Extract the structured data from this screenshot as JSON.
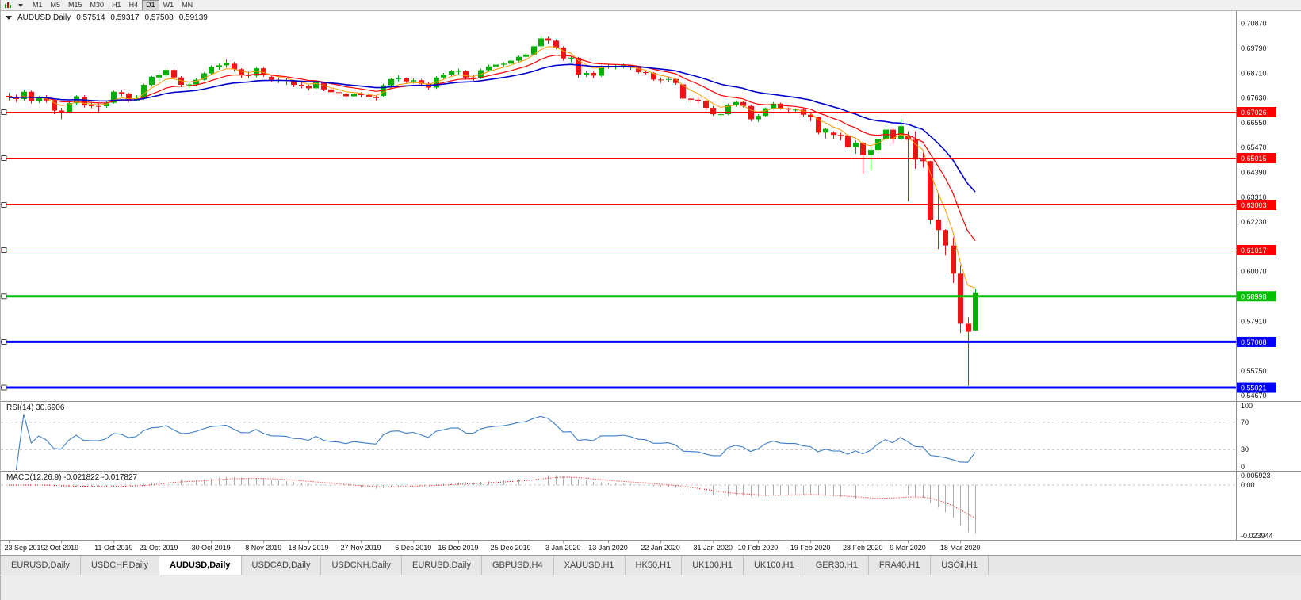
{
  "toolbar": {
    "timeframes": [
      "M1",
      "M5",
      "M15",
      "M30",
      "H1",
      "H4",
      "D1",
      "W1",
      "MN"
    ],
    "active_timeframe": "D1",
    "icons": [
      "chart-icon",
      "dropdown-icon"
    ]
  },
  "chart_data": {
    "type": "candlestick",
    "symbol": "AUDUSD",
    "timeframe": "Daily",
    "legend": {
      "symbol": "AUDUSD,Daily",
      "open": "0.57514",
      "high": "0.59317",
      "low": "0.57508",
      "close": "0.59139"
    },
    "price_axis": {
      "min": 0.5447,
      "max": 0.7141,
      "ticks": [
        [
          0.7087,
          "0.70870"
        ],
        [
          0.6979,
          "0.69790"
        ],
        [
          0.6871,
          "0.68710"
        ],
        [
          0.6763,
          "0.67630"
        ],
        [
          0.6655,
          "0.66550"
        ],
        [
          0.6547,
          "0.65470"
        ],
        [
          0.6439,
          "0.64390"
        ],
        [
          0.6331,
          "0.63310"
        ],
        [
          0.6223,
          "0.62230"
        ],
        [
          0.6007,
          "0.60070"
        ],
        [
          0.5791,
          "0.57910"
        ],
        [
          0.5575,
          "0.55750"
        ],
        [
          0.5467,
          "0.54670"
        ]
      ]
    },
    "horizontal_lines": [
      {
        "price": 0.67026,
        "label": "0.67026",
        "color": "#FF0000",
        "width": 1
      },
      {
        "price": 0.65015,
        "label": "0.65015",
        "color": "#FF0000",
        "width": 1
      },
      {
        "price": 0.63003,
        "label": "0.63003",
        "color": "#FF0000",
        "width": 1
      },
      {
        "price": 0.61017,
        "label": "0.61017",
        "color": "#FF0000",
        "width": 1
      },
      {
        "price": 0.58998,
        "label": "0.58998",
        "color": "#00C000",
        "width": 3
      },
      {
        "price": 0.57008,
        "label": "0.57008",
        "color": "#0000FF",
        "width": 3
      },
      {
        "price": 0.55021,
        "label": "0.55021",
        "color": "#0000FF",
        "width": 3
      }
    ],
    "moving_averages": [
      {
        "period": 5,
        "color": "#FF9900",
        "width": 1
      },
      {
        "period": 12,
        "color": "#FF0000",
        "width": 1.2
      },
      {
        "period": 26,
        "color": "#0000CC",
        "width": 1.6
      }
    ],
    "colors": {
      "bull": "#00B000",
      "bear": "#F01414",
      "background": "#FFFFFF",
      "axis_text": "#111111"
    },
    "candles": [
      [
        0.6772,
        0.6785,
        0.6752,
        0.6765
      ],
      [
        0.6765,
        0.6778,
        0.6745,
        0.6758
      ],
      [
        0.6758,
        0.6798,
        0.675,
        0.679
      ],
      [
        0.679,
        0.6795,
        0.6738,
        0.6748
      ],
      [
        0.6748,
        0.6772,
        0.674,
        0.6765
      ],
      [
        0.6765,
        0.6775,
        0.6742,
        0.6752
      ],
      [
        0.6752,
        0.6758,
        0.6692,
        0.6708
      ],
      [
        0.6708,
        0.672,
        0.667,
        0.6703
      ],
      [
        0.6703,
        0.6748,
        0.6698,
        0.674
      ],
      [
        0.674,
        0.6775,
        0.6732,
        0.677
      ],
      [
        0.6768,
        0.6775,
        0.6722,
        0.673
      ],
      [
        0.673,
        0.6745,
        0.6718,
        0.6728
      ],
      [
        0.6728,
        0.6738,
        0.67,
        0.6727
      ],
      [
        0.6727,
        0.6752,
        0.672,
        0.6742
      ],
      [
        0.6742,
        0.6795,
        0.6738,
        0.679
      ],
      [
        0.6788,
        0.6795,
        0.677,
        0.6782
      ],
      [
        0.6782,
        0.6785,
        0.6745,
        0.6752
      ],
      [
        0.6752,
        0.6775,
        0.6748,
        0.676
      ],
      [
        0.676,
        0.6825,
        0.6755,
        0.682
      ],
      [
        0.682,
        0.686,
        0.6812,
        0.6855
      ],
      [
        0.6852,
        0.687,
        0.6838,
        0.6862
      ],
      [
        0.6862,
        0.6892,
        0.6855,
        0.6885
      ],
      [
        0.6885,
        0.6888,
        0.6845,
        0.6852
      ],
      [
        0.6852,
        0.6858,
        0.681,
        0.682
      ],
      [
        0.682,
        0.6832,
        0.6805,
        0.6822
      ],
      [
        0.6822,
        0.6848,
        0.6815,
        0.6842
      ],
      [
        0.6842,
        0.6875,
        0.6838,
        0.687
      ],
      [
        0.687,
        0.6905,
        0.6862,
        0.6898
      ],
      [
        0.6898,
        0.6912,
        0.6885,
        0.6905
      ],
      [
        0.6905,
        0.693,
        0.6895,
        0.6915
      ],
      [
        0.6912,
        0.692,
        0.6878,
        0.6888
      ],
      [
        0.6888,
        0.6892,
        0.685,
        0.6862
      ],
      [
        0.6862,
        0.6878,
        0.6848,
        0.686
      ],
      [
        0.686,
        0.6898,
        0.6852,
        0.6892
      ],
      [
        0.6892,
        0.6898,
        0.6855,
        0.6862
      ],
      [
        0.6855,
        0.6862,
        0.6832,
        0.6842
      ],
      [
        0.6842,
        0.6852,
        0.6828,
        0.684
      ],
      [
        0.684,
        0.6848,
        0.682,
        0.6838
      ],
      [
        0.6838,
        0.6842,
        0.681,
        0.682
      ],
      [
        0.682,
        0.6832,
        0.6805,
        0.6818
      ],
      [
        0.6815,
        0.682,
        0.6795,
        0.6805
      ],
      [
        0.6805,
        0.6838,
        0.6798,
        0.6832
      ],
      [
        0.6832,
        0.6835,
        0.6792,
        0.68
      ],
      [
        0.68,
        0.681,
        0.678,
        0.6788
      ],
      [
        0.6788,
        0.6795,
        0.6772,
        0.6785
      ],
      [
        0.6782,
        0.6788,
        0.6762,
        0.677
      ],
      [
        0.677,
        0.679,
        0.6765,
        0.6782
      ],
      [
        0.6782,
        0.6788,
        0.6765,
        0.6775
      ],
      [
        0.6775,
        0.678,
        0.6758,
        0.6768
      ],
      [
        0.6768,
        0.6772,
        0.6752,
        0.6762
      ],
      [
        0.6772,
        0.6825,
        0.6768,
        0.6818
      ],
      [
        0.6818,
        0.685,
        0.6812,
        0.6845
      ],
      [
        0.6845,
        0.6862,
        0.6835,
        0.6848
      ],
      [
        0.6848,
        0.6852,
        0.6828,
        0.6835
      ],
      [
        0.6835,
        0.6848,
        0.6825,
        0.684
      ],
      [
        0.684,
        0.6845,
        0.6818,
        0.6825
      ],
      [
        0.6825,
        0.6832,
        0.6798,
        0.6808
      ],
      [
        0.6808,
        0.6858,
        0.6802,
        0.6852
      ],
      [
        0.6852,
        0.6872,
        0.6845,
        0.6865
      ],
      [
        0.6865,
        0.6885,
        0.6858,
        0.688
      ],
      [
        0.688,
        0.689,
        0.6865,
        0.688
      ],
      [
        0.688,
        0.6885,
        0.6845,
        0.6852
      ],
      [
        0.6852,
        0.6862,
        0.6838,
        0.685
      ],
      [
        0.685,
        0.689,
        0.6845,
        0.6884
      ],
      [
        0.6884,
        0.6908,
        0.6878,
        0.69
      ],
      [
        0.69,
        0.6915,
        0.6892,
        0.6908
      ],
      [
        0.6908,
        0.6918,
        0.69,
        0.6912
      ],
      [
        0.6912,
        0.693,
        0.6905,
        0.6925
      ],
      [
        0.6925,
        0.6948,
        0.692,
        0.6942
      ],
      [
        0.6942,
        0.6958,
        0.6935,
        0.6952
      ],
      [
        0.6952,
        0.6995,
        0.6948,
        0.6988
      ],
      [
        0.6988,
        0.7032,
        0.6982,
        0.7022
      ],
      [
        0.7022,
        0.703,
        0.6998,
        0.7012
      ],
      [
        0.7012,
        0.7018,
        0.6975,
        0.6982
      ],
      [
        0.6982,
        0.6988,
        0.6925,
        0.6935
      ],
      [
        0.6935,
        0.6945,
        0.6918,
        0.6938
      ],
      [
        0.6938,
        0.6942,
        0.685,
        0.6865
      ],
      [
        0.6865,
        0.6882,
        0.6855,
        0.6872
      ],
      [
        0.6872,
        0.6878,
        0.6849,
        0.686
      ],
      [
        0.686,
        0.6905,
        0.6855,
        0.69
      ],
      [
        0.69,
        0.6912,
        0.689,
        0.69
      ],
      [
        0.69,
        0.6908,
        0.6888,
        0.69
      ],
      [
        0.69,
        0.6912,
        0.6892,
        0.6905
      ],
      [
        0.6905,
        0.6908,
        0.6885,
        0.6895
      ],
      [
        0.6895,
        0.69,
        0.687,
        0.6875
      ],
      [
        0.6875,
        0.688,
        0.6862,
        0.6872
      ],
      [
        0.6872,
        0.6875,
        0.6838,
        0.6843
      ],
      [
        0.6843,
        0.6852,
        0.6828,
        0.6842
      ],
      [
        0.6842,
        0.6855,
        0.6832,
        0.6845
      ],
      [
        0.6845,
        0.6848,
        0.682,
        0.6828
      ],
      [
        0.6822,
        0.6828,
        0.6752,
        0.676
      ],
      [
        0.676,
        0.6768,
        0.6742,
        0.6755
      ],
      [
        0.6755,
        0.6765,
        0.6738,
        0.675
      ],
      [
        0.675,
        0.6755,
        0.671,
        0.672
      ],
      [
        0.672,
        0.6728,
        0.6685,
        0.6692
      ],
      [
        0.6692,
        0.6708,
        0.6678,
        0.6692
      ],
      [
        0.6692,
        0.6738,
        0.6688,
        0.6732
      ],
      [
        0.6732,
        0.6752,
        0.6725,
        0.6745
      ],
      [
        0.6745,
        0.6748,
        0.6722,
        0.6728
      ],
      [
        0.6728,
        0.6732,
        0.6662,
        0.667
      ],
      [
        0.667,
        0.6692,
        0.6658,
        0.6685
      ],
      [
        0.6685,
        0.6722,
        0.668,
        0.6718
      ],
      [
        0.6718,
        0.6745,
        0.6712,
        0.6738
      ],
      [
        0.6738,
        0.6742,
        0.6712,
        0.6718
      ],
      [
        0.6718,
        0.6722,
        0.67,
        0.6712
      ],
      [
        0.6712,
        0.6718,
        0.67,
        0.6712
      ],
      [
        0.6712,
        0.6715,
        0.6682,
        0.669
      ],
      [
        0.669,
        0.6695,
        0.6662,
        0.668
      ],
      [
        0.668,
        0.6682,
        0.6605,
        0.6612
      ],
      [
        0.6612,
        0.6632,
        0.6585,
        0.6628
      ],
      [
        0.6612,
        0.6618,
        0.6585,
        0.6602
      ],
      [
        0.6602,
        0.6612,
        0.6578,
        0.66
      ],
      [
        0.66,
        0.6605,
        0.6542,
        0.6548
      ],
      [
        0.6548,
        0.6578,
        0.652,
        0.6568
      ],
      [
        0.6568,
        0.6572,
        0.6433,
        0.6515
      ],
      [
        0.6515,
        0.6548,
        0.6452,
        0.6537
      ],
      [
        0.6537,
        0.661,
        0.652,
        0.6585
      ],
      [
        0.6585,
        0.6645,
        0.6576,
        0.6625
      ],
      [
        0.6625,
        0.6632,
        0.6562,
        0.6585
      ],
      [
        0.6585,
        0.6672,
        0.658,
        0.664
      ],
      [
        0.6598,
        0.6618,
        0.6313,
        0.6581
      ],
      [
        0.6581,
        0.6618,
        0.6455,
        0.6495
      ],
      [
        0.6495,
        0.6525,
        0.646,
        0.6488
      ],
      [
        0.6488,
        0.649,
        0.6214,
        0.6233
      ],
      [
        0.6233,
        0.6345,
        0.6105,
        0.6188
      ],
      [
        0.6188,
        0.6192,
        0.6078,
        0.6121
      ],
      [
        0.6121,
        0.6156,
        0.5958,
        0.5998
      ],
      [
        0.5998,
        0.6035,
        0.574,
        0.578
      ],
      [
        0.578,
        0.5808,
        0.551,
        0.5745
      ],
      [
        0.57514,
        0.59317,
        0.57508,
        0.59139
      ]
    ],
    "date_labels": [
      [
        0,
        "23 Sep 2019"
      ],
      [
        7,
        "2 Oct 2019"
      ],
      [
        14,
        "11 Oct 2019"
      ],
      [
        20,
        "21 Oct 2019"
      ],
      [
        27,
        "30 Oct 2019"
      ],
      [
        34,
        "8 Nov 2019"
      ],
      [
        40,
        "18 Nov 2019"
      ],
      [
        47,
        "27 Nov 2019"
      ],
      [
        54,
        "6 Dec 2019"
      ],
      [
        60,
        "16 Dec 2019"
      ],
      [
        67,
        "25 Dec 2019"
      ],
      [
        74,
        "3 Jan 2020"
      ],
      [
        80,
        "13 Jan 2020"
      ],
      [
        87,
        "22 Jan 2020"
      ],
      [
        94,
        "31 Jan 2020"
      ],
      [
        100,
        "10 Feb 2020"
      ],
      [
        107,
        "19 Feb 2020"
      ],
      [
        114,
        "28 Feb 2020"
      ],
      [
        120,
        "9 Mar 2020"
      ],
      [
        127,
        "18 Mar 2020"
      ]
    ],
    "indicators": {
      "rsi": {
        "label": "RSI(14) 30.6906",
        "period": 14,
        "levels": [
          70,
          30
        ],
        "axis_labels": [
          "100",
          "70",
          "30",
          "0"
        ],
        "range": [
          0,
          100
        ],
        "color": "#3E7EC8"
      },
      "macd": {
        "label": "MACD(12,26,9) -0.021822 -0.017827",
        "fast": 12,
        "slow": 26,
        "signal_period": 9,
        "axis_labels": {
          "max": "0.005923",
          "zero": "0.00",
          "min": "-0.023944"
        },
        "range": [
          -0.023944,
          0.005923
        ],
        "histogram_color": "#ABABAB",
        "signal_color": "#FF0000"
      }
    }
  },
  "tabs": {
    "items": [
      "EURUSD,Daily",
      "USDCHF,Daily",
      "AUDUSD,Daily",
      "USDCAD,Daily",
      "USDCNH,Daily",
      "EURUSD,Daily",
      "GBPUSD,H4",
      "XAUUSD,H1",
      "HK50,H1",
      "UK100,H1",
      "UK100,H1",
      "GER30,H1",
      "FRA40,H1",
      "USOil,H1"
    ],
    "active_index": 2
  }
}
